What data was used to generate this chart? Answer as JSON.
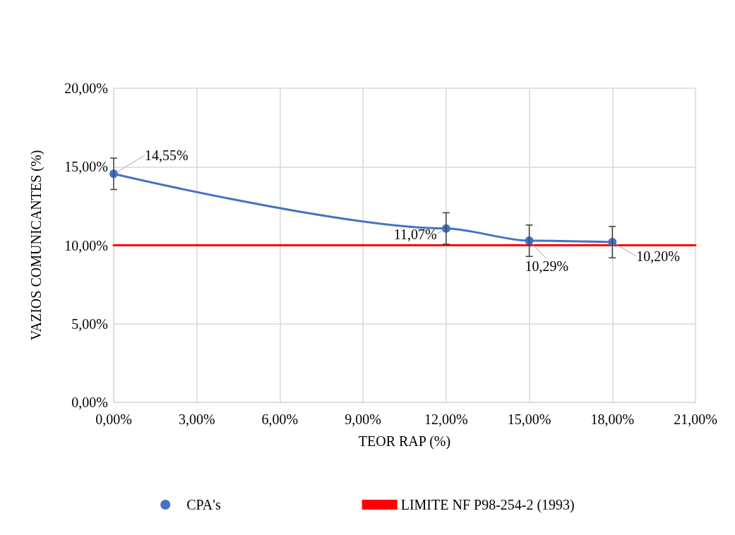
{
  "chart_data": {
    "type": "line",
    "xlabel": "TEOR RAP (%)",
    "ylabel": "VAZIOS COMUNICANTES (%)",
    "x": [
      0,
      12,
      15,
      18
    ],
    "series": [
      {
        "name": "CPA's",
        "color": "#4472c4",
        "values": [
          14.55,
          11.07,
          10.29,
          10.2
        ],
        "errors": [
          1,
          1,
          1,
          1
        ],
        "value_labels": [
          "14,55%",
          "11,07%",
          "10,29%",
          "10,20%"
        ],
        "marker": "circle"
      },
      {
        "name": "LIMITE NF P98-254-2 (1993)",
        "color": "#ff0000",
        "x": [
          0,
          21
        ],
        "values": [
          10,
          10
        ],
        "marker": "none"
      }
    ],
    "xlim": [
      0,
      21
    ],
    "ylim": [
      0,
      20
    ],
    "xticks": [
      {
        "value": 0,
        "label": "0,00%"
      },
      {
        "value": 3,
        "label": "3,00%"
      },
      {
        "value": 6,
        "label": "6,00%"
      },
      {
        "value": 9,
        "label": "9,00%"
      },
      {
        "value": 12,
        "label": "12,00%"
      },
      {
        "value": 15,
        "label": "15,00%"
      },
      {
        "value": 18,
        "label": "18,00%"
      },
      {
        "value": 21,
        "label": "21,00%"
      }
    ],
    "yticks": [
      {
        "value": 0,
        "label": "0,00%"
      },
      {
        "value": 5,
        "label": "5,00%"
      },
      {
        "value": 10,
        "label": "10,00%"
      },
      {
        "value": 15,
        "label": "15,00%"
      },
      {
        "value": 20,
        "label": "20,00%"
      }
    ],
    "grid": true,
    "legend": "bottom",
    "line_style": "solid"
  }
}
